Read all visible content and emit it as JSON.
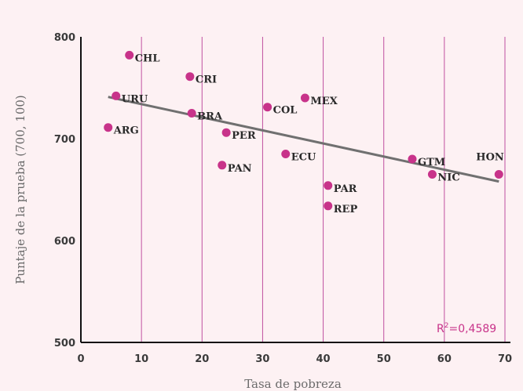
{
  "chart_data": {
    "type": "scatter",
    "title": "",
    "xlabel": "Tasa de pobreza",
    "ylabel": "Puntaje de la prueba (700, 100)",
    "xlim": [
      0,
      70
    ],
    "ylim": [
      500,
      800
    ],
    "xticks": [
      0,
      10,
      20,
      30,
      40,
      50,
      60,
      70
    ],
    "yticks": [
      500,
      600,
      700,
      800
    ],
    "grid": "vertical",
    "point_color": "#c8338a",
    "gridline_color": "#c050a0",
    "trendline_color": "#707070",
    "trendline": {
      "x": [
        4.5,
        69
      ],
      "y": [
        741,
        658
      ]
    },
    "annotation": {
      "prefix": "R",
      "sup": "2",
      "rest": "=0,4589"
    },
    "points": [
      {
        "label": "CHL",
        "x": 8.0,
        "y": 782
      },
      {
        "label": "CRI",
        "x": 18.0,
        "y": 761
      },
      {
        "label": "URU",
        "x": 5.8,
        "y": 742
      },
      {
        "label": "MEX",
        "x": 37.0,
        "y": 740
      },
      {
        "label": "COL",
        "x": 30.8,
        "y": 731
      },
      {
        "label": "BRA",
        "x": 18.3,
        "y": 725
      },
      {
        "label": "ARG",
        "x": 4.5,
        "y": 711
      },
      {
        "label": "PER",
        "x": 24.0,
        "y": 706
      },
      {
        "label": "ECU",
        "x": 33.8,
        "y": 685
      },
      {
        "label": "GTM",
        "x": 54.7,
        "y": 680
      },
      {
        "label": "PAN",
        "x": 23.3,
        "y": 674
      },
      {
        "label": "HON",
        "x": 69.0,
        "y": 665
      },
      {
        "label": "NIC",
        "x": 58.0,
        "y": 665
      },
      {
        "label": "PAR",
        "x": 40.8,
        "y": 654
      },
      {
        "label": "REP",
        "x": 40.8,
        "y": 634
      }
    ]
  }
}
